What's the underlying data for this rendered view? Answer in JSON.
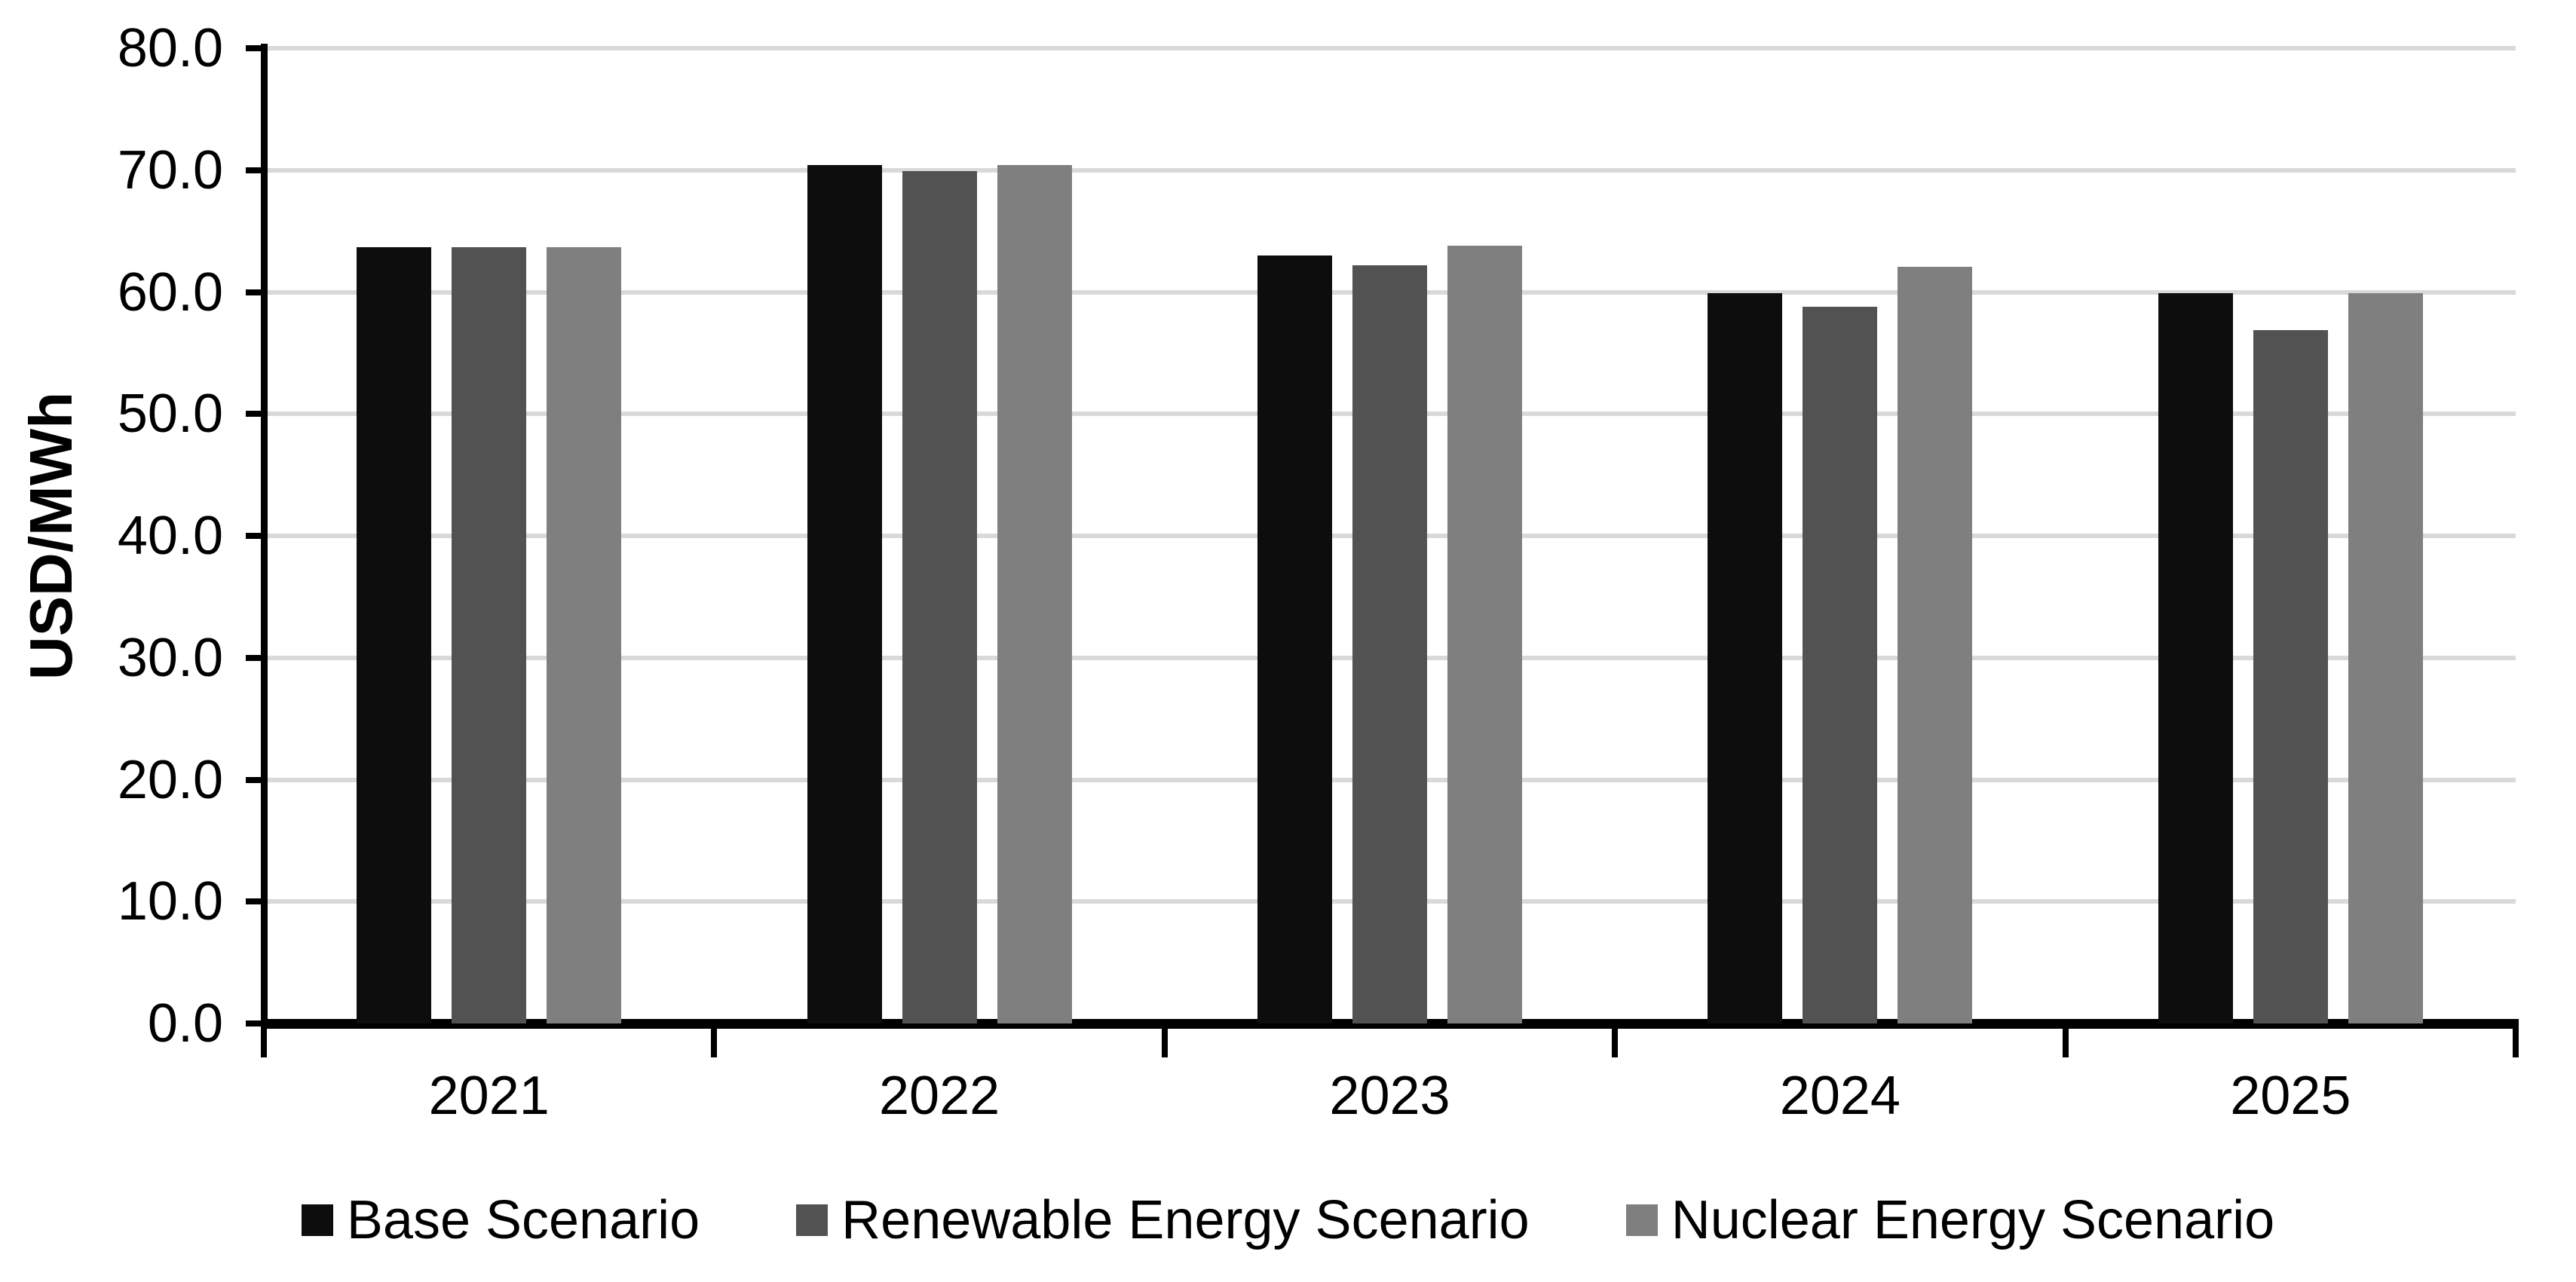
{
  "chart_data": {
    "type": "bar",
    "title": "",
    "ylabel": "USD/MWh",
    "xlabel": "",
    "categories": [
      "2021",
      "2022",
      "2023",
      "2024",
      "2025"
    ],
    "series": [
      {
        "name": "Base Scenario",
        "color": "#0d0d0d",
        "values": [
          63.7,
          70.4,
          63.0,
          59.9,
          59.9
        ]
      },
      {
        "name": "Renewable Energy Scenario",
        "color": "#525252",
        "values": [
          63.7,
          69.9,
          62.2,
          58.8,
          56.9
        ]
      },
      {
        "name": "Nuclear Energy Scenario",
        "color": "#7f7f7f",
        "values": [
          63.7,
          70.4,
          63.8,
          62.1,
          59.9
        ]
      }
    ],
    "ylim": [
      0,
      80
    ],
    "y_tick_step": 10,
    "y_tick_labels_top_down": [
      "80.0",
      "70.0",
      "60.0",
      "50.0",
      "40.0",
      "30.0",
      "20.0",
      "10.0",
      "0.0"
    ],
    "grid": true,
    "gridline_color": "#d9d9d9",
    "axis_color": "#000000",
    "legend_position": "bottom"
  }
}
